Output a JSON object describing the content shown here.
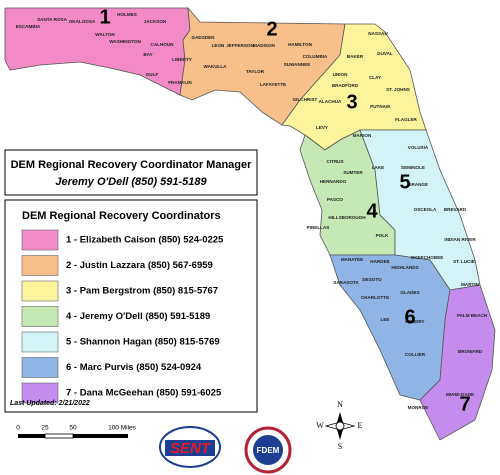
{
  "title": "DEM Regional Recovery Coordinator Manager",
  "manager": "Jeremy O'Dell (850) 591-5189",
  "legend_title": "DEM Regional Recovery Coordinators",
  "regions": [
    {
      "number": "1",
      "label": "1 - Elizabeth Caison (850) 524-0225",
      "color": "#f28ac6"
    },
    {
      "number": "2",
      "label": "2 - Justin Lazzara (850) 567-6959",
      "color": "#f7bf8a"
    },
    {
      "number": "3",
      "label": "3 - Pam Bergstrom (850) 815-5767",
      "color": "#fbf49c"
    },
    {
      "number": "4",
      "label": "4 - Jeremy O'Dell (850) 591-5189",
      "color": "#c6e8b4"
    },
    {
      "number": "5",
      "label": "5 - Shannon Hagan (850) 815-5769",
      "color": "#d2f4f6"
    },
    {
      "number": "6",
      "label": "6 - Marc Purvis (850) 524-0924",
      "color": "#8fb4e6"
    },
    {
      "number": "7",
      "label": "7 - Dana McGeehan (850) 591-6025",
      "color": "#c58cee"
    }
  ],
  "last_updated": "Last Updated: 2/21/2022",
  "scale_labels": [
    "0",
    "25",
    "50",
    "100 Miles"
  ],
  "compass": [
    "N",
    "S",
    "E",
    "W"
  ],
  "logos": [
    "SENT",
    "FDEM"
  ],
  "counties": [
    "ESCAMBIA",
    "SANTA ROSA",
    "OKALOOSA",
    "WALTON",
    "HOLMES",
    "JACKSON",
    "WASHINGTON",
    "BAY",
    "CALHOUN",
    "GULF",
    "LIBERTY",
    "FRANKLIN",
    "GADSDEN",
    "LEON",
    "JEFFERSON",
    "MADISON",
    "HAMILTON",
    "WAKULLA",
    "TAYLOR",
    "SUWANNEE",
    "LAFAYETTE",
    "COLUMBIA",
    "BAKER",
    "NASSAU",
    "DUVAL",
    "UNION",
    "BRADFORD",
    "CLAY",
    "ST. JOHNS",
    "GILCHRIST",
    "ALACHUA",
    "PUTNAM",
    "FLAGLER",
    "LEVY",
    "MARION",
    "VOLUSIA",
    "CITRUS",
    "SUMTER",
    "LAKE",
    "SEMINOLE",
    "ORANGE",
    "HERNANDO",
    "PASCO",
    "OSCEOLA",
    "BREVARD",
    "HILLSBOROUGH",
    "POLK",
    "PINELLAS",
    "MANATEE",
    "HARDEE",
    "HIGHLANDS",
    "OKEECHOBEE",
    "INDIAN RIVER",
    "ST. LUCIE",
    "SARASOTA",
    "DESOTO",
    "CHARLOTTE",
    "GLADES",
    "MARTIN",
    "LEE",
    "HENDRY",
    "PALM BEACH",
    "COLLIER",
    "BROWARD",
    "MIAMI-DADE",
    "MONROE"
  ]
}
